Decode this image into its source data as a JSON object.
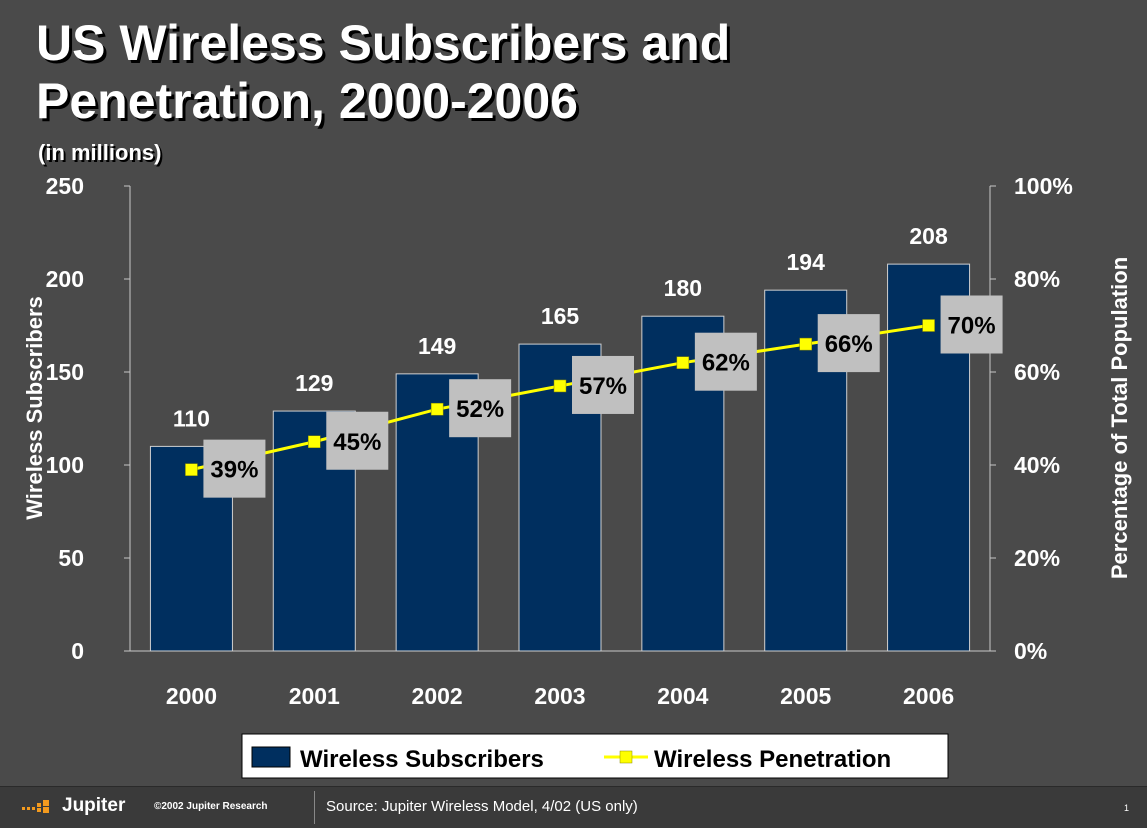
{
  "slide": {
    "title_line1": "US Wireless Subscribers and",
    "title_line2": "Penetration, 2000-2006",
    "subtitle": "(in millions)"
  },
  "chart_data": {
    "type": "bar",
    "categories": [
      "2000",
      "2001",
      "2002",
      "2003",
      "2004",
      "2005",
      "2006"
    ],
    "series": [
      {
        "name": "Wireless Subscribers",
        "type": "bar",
        "axis": "left",
        "values": [
          110,
          129,
          149,
          165,
          180,
          194,
          208
        ],
        "color": "#002f5f"
      },
      {
        "name": "Wireless Penetration",
        "type": "line",
        "axis": "right",
        "values": [
          39,
          45,
          52,
          57,
          62,
          66,
          70
        ],
        "color": "#ffff00"
      }
    ],
    "bar_labels": [
      "110",
      "129",
      "149",
      "165",
      "180",
      "194",
      "208"
    ],
    "line_labels": [
      "39%",
      "45%",
      "52%",
      "57%",
      "62%",
      "66%",
      "70%"
    ],
    "ylabel": "Wireless Subscribers",
    "y2label": "Percentage of Total Population",
    "ylim": [
      0,
      250
    ],
    "y2lim": [
      0,
      100
    ],
    "yticks": [
      "0",
      "50",
      "100",
      "150",
      "200",
      "250"
    ],
    "y2ticks": [
      "0%",
      "20%",
      "40%",
      "60%",
      "80%",
      "100%"
    ],
    "legend_position": "bottom",
    "grid": false,
    "colors": {
      "background": "#4a4a4a",
      "bar": "#002f5f",
      "line": "#ffff00",
      "label_box": "#c0c0c0",
      "text": "#ffffff"
    }
  },
  "footer": {
    "logo_text": "Jupiter",
    "copyright": "©2002 Jupiter Research",
    "source": "Source: Jupiter Wireless Model, 4/02 (US only)",
    "page_number": "1"
  }
}
